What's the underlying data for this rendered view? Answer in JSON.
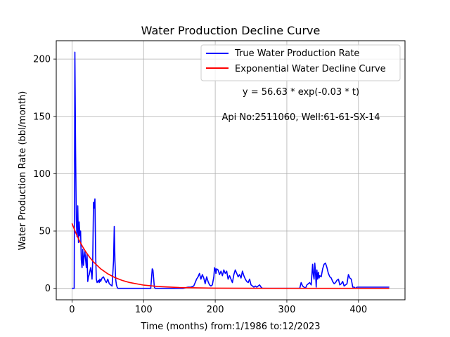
{
  "chart_data": {
    "type": "line",
    "title": "Water Production Decline Curve",
    "xlabel": "Time (months) from:1/1986 to:12/2023",
    "ylabel": "Water Production Rate (bbl/month)",
    "xlim": [
      -22,
      465
    ],
    "ylim": [
      -10,
      216
    ],
    "x_ticks": [
      0,
      100,
      200,
      300,
      400
    ],
    "y_ticks": [
      0,
      50,
      100,
      150,
      200
    ],
    "grid": true,
    "legend_position": "upper-right",
    "annotations": [
      "y = 56.63 * exp(-0.03 * t)",
      "Api No:2511060, Well:61-61-SX-14"
    ],
    "series": [
      {
        "name": "True Water Production Rate",
        "color": "#0000ff",
        "x": [
          0,
          3,
          4,
          5,
          6,
          7,
          8,
          9,
          10,
          11,
          12,
          13,
          14,
          15,
          16,
          17,
          18,
          19,
          20,
          21,
          22,
          23,
          24,
          25,
          26,
          27,
          28,
          29,
          30,
          31,
          32,
          33,
          34,
          35,
          36,
          37,
          38,
          39,
          40,
          42,
          44,
          46,
          48,
          50,
          52,
          54,
          56,
          58,
          59,
          60,
          61,
          62,
          63,
          64,
          66,
          68,
          70,
          75,
          80,
          90,
          100,
          110,
          112,
          113,
          114,
          115,
          116,
          118,
          125,
          140,
          155,
          162,
          166,
          170,
          172,
          174,
          176,
          178,
          180,
          182,
          184,
          186,
          188,
          190,
          192,
          194,
          196,
          198,
          199,
          200,
          201,
          202,
          204,
          206,
          208,
          210,
          212,
          214,
          216,
          218,
          220,
          222,
          224,
          226,
          228,
          230,
          232,
          234,
          236,
          238,
          240,
          242,
          244,
          246,
          248,
          250,
          252,
          254,
          256,
          258,
          260,
          262,
          264,
          266,
          270,
          280,
          290,
          300,
          310,
          318,
          320,
          322,
          324,
          326,
          328,
          330,
          332,
          334,
          336,
          337,
          338,
          339,
          340,
          341,
          342,
          343,
          344,
          345,
          346,
          348,
          350,
          352,
          354,
          356,
          358,
          360,
          362,
          364,
          366,
          368,
          370,
          372,
          374,
          376,
          378,
          380,
          382,
          384,
          386,
          388,
          390,
          392,
          394,
          396,
          398,
          400,
          402,
          404,
          406,
          410,
          420,
          430,
          440,
          443
        ],
        "y": [
          0,
          0,
          206,
          120,
          60,
          45,
          72,
          40,
          58,
          46,
          50,
          25,
          18,
          34,
          20,
          28,
          32,
          25,
          18,
          30,
          6,
          10,
          12,
          15,
          18,
          14,
          8,
          25,
          75,
          70,
          78,
          30,
          8,
          5,
          6,
          7,
          5,
          8,
          6,
          9,
          10,
          7,
          5,
          8,
          4,
          3,
          2,
          24,
          54,
          24,
          8,
          3,
          1,
          0,
          0,
          0,
          0,
          0,
          0,
          0,
          0,
          0,
          17,
          16,
          9,
          1,
          0,
          0,
          0,
          0,
          0,
          1,
          1,
          2,
          5,
          8,
          10,
          13,
          8,
          12,
          9,
          4,
          10,
          6,
          3,
          2,
          3,
          10,
          18,
          17,
          13,
          17,
          16,
          12,
          15,
          11,
          16,
          13,
          15,
          8,
          11,
          8,
          5,
          12,
          16,
          13,
          10,
          12,
          9,
          15,
          11,
          8,
          6,
          5,
          8,
          3,
          2,
          1,
          2,
          1,
          2,
          3,
          1,
          0,
          0,
          0,
          0,
          0,
          0,
          0,
          5,
          2,
          1,
          0,
          3,
          4,
          5,
          3,
          21,
          12,
          8,
          22,
          14,
          1,
          16,
          8,
          14,
          9,
          11,
          10,
          17,
          21,
          22,
          18,
          13,
          10,
          9,
          6,
          4,
          5,
          7,
          8,
          3,
          4,
          6,
          2,
          3,
          4,
          12,
          9,
          8,
          1,
          1,
          0,
          1,
          1,
          1,
          1,
          1,
          1,
          1,
          1,
          1,
          1
        ]
      },
      {
        "name": "Exponential Water Decline Curve",
        "color": "#ff0000",
        "x": [
          0,
          5,
          10,
          15,
          20,
          25,
          30,
          40,
          50,
          60,
          70,
          80,
          100,
          120,
          150,
          200,
          250,
          300,
          350,
          400,
          443
        ],
        "y": [
          56.63,
          48.73,
          41.95,
          36.11,
          31.08,
          26.75,
          23.02,
          17.06,
          12.64,
          9.36,
          6.93,
          5.14,
          2.82,
          1.55,
          0.63,
          0.14,
          0.03,
          0.01,
          0,
          0,
          0
        ]
      }
    ]
  }
}
